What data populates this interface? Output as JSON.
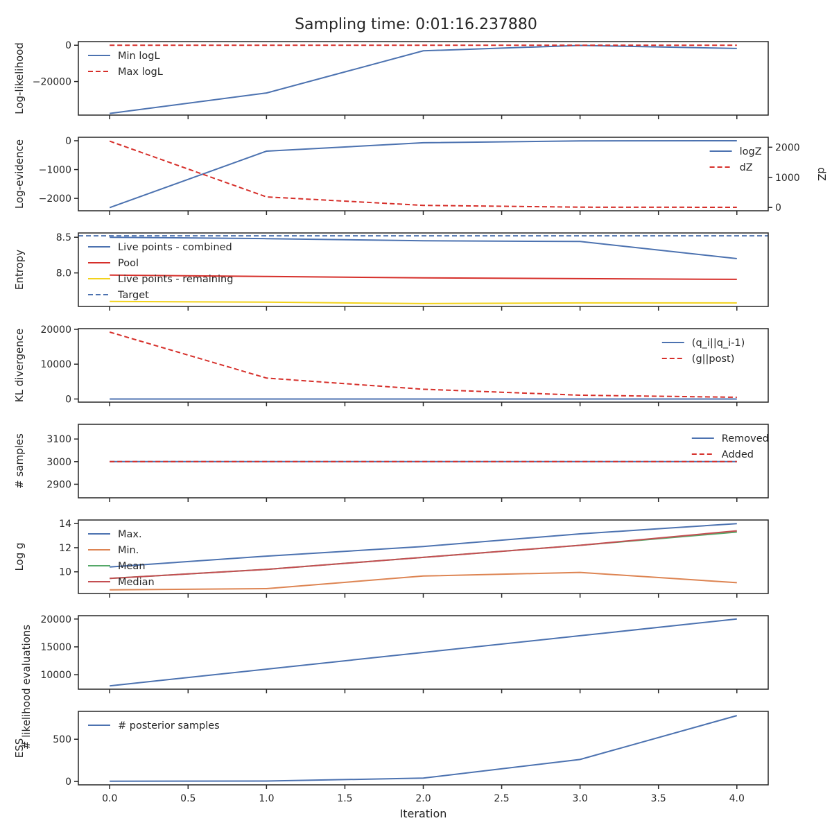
{
  "title": "Sampling time: 0:01:16.237880",
  "colors": {
    "blue": "#4c72b0",
    "red_dashed": "#d62f2a",
    "red": "#d62f2a",
    "orange": "#dd8452",
    "green": "#55a868",
    "median_red": "#c44e52",
    "yellow": "#f2d21b",
    "axis": "#262626"
  },
  "chart_data": [
    {
      "type": "line",
      "ylabel": "Log-likelihood",
      "ylim": [
        -38500,
        2000
      ],
      "yticks": [
        {
          "v": 0,
          "label": "0"
        },
        {
          "v": -20000,
          "label": "−20000"
        }
      ],
      "legend_position": "top-left",
      "series": [
        {
          "name": "Min logL",
          "x": [
            0,
            1,
            2,
            3,
            4
          ],
          "values": [
            -37600,
            -26300,
            -3100,
            -100,
            -1800
          ],
          "color": "#4c72b0",
          "style": "solid"
        },
        {
          "name": "Max logL",
          "x": [
            0,
            1,
            2,
            3,
            4
          ],
          "values": [
            0,
            0,
            0,
            0,
            0
          ],
          "color": "#d62f2a",
          "style": "dashed"
        }
      ]
    },
    {
      "type": "line",
      "ylabel": "Log-evidence",
      "ylabel_right": "dZ",
      "ylim": [
        -2430,
        120
      ],
      "yticks": [
        {
          "v": 0,
          "label": "0"
        },
        {
          "v": -1000,
          "label": "−1000"
        },
        {
          "v": -2000,
          "label": "−2000"
        }
      ],
      "ylim_right": [
        -110,
        2330
      ],
      "yticks_right": [
        {
          "v": 0,
          "label": "0"
        },
        {
          "v": 1000,
          "label": "1000"
        },
        {
          "v": 2000,
          "label": "2000"
        }
      ],
      "legend_position": "top-right",
      "series": [
        {
          "name": "logZ",
          "x": [
            0,
            1,
            2,
            3,
            4
          ],
          "values": [
            -2320,
            -360,
            -70,
            -5,
            0
          ],
          "color": "#4c72b0",
          "style": "solid",
          "axis": "left"
        },
        {
          "name": "dZ",
          "x": [
            0,
            1,
            2,
            3,
            4
          ],
          "values": [
            2200,
            350,
            70,
            10,
            5
          ],
          "color": "#d62f2a",
          "style": "dashed",
          "axis": "right"
        }
      ]
    },
    {
      "type": "line",
      "ylabel": "Entropy",
      "ylim": [
        7.53,
        8.56
      ],
      "yticks": [
        {
          "v": 8.5,
          "label": "8.5"
        },
        {
          "v": 8.0,
          "label": "8.0"
        }
      ],
      "legend_position": "top-left",
      "series": [
        {
          "name": "Live points - combined",
          "x": [
            0,
            1,
            2,
            3,
            4
          ],
          "values": [
            8.5,
            8.48,
            8.45,
            8.44,
            8.2
          ],
          "color": "#4c72b0",
          "style": "solid"
        },
        {
          "name": "Pool",
          "x": [
            0,
            1,
            2,
            3,
            4
          ],
          "values": [
            7.97,
            7.95,
            7.93,
            7.92,
            7.91
          ],
          "color": "#d62f2a",
          "style": "solid"
        },
        {
          "name": "Live points - remaining",
          "x": [
            0,
            1,
            2,
            3,
            4
          ],
          "values": [
            7.6,
            7.59,
            7.57,
            7.58,
            7.58
          ],
          "color": "#f2d21b",
          "style": "solid"
        },
        {
          "name": "Target",
          "x": [
            -0.2,
            4.2
          ],
          "values": [
            8.52,
            8.52
          ],
          "color": "#4c72b0",
          "style": "dashed"
        }
      ]
    },
    {
      "type": "line",
      "ylabel": "KL divergence",
      "ylim": [
        -900,
        20200
      ],
      "yticks": [
        {
          "v": 20000,
          "label": "20000"
        },
        {
          "v": 10000,
          "label": "10000"
        },
        {
          "v": 0,
          "label": "0"
        }
      ],
      "legend_position": "top-right",
      "series": [
        {
          "name": "(q_i||q_i-1)",
          "x": [
            0,
            1,
            2,
            3,
            4
          ],
          "values": [
            0,
            0,
            0,
            0,
            0
          ],
          "color": "#4c72b0",
          "style": "solid"
        },
        {
          "name": "(g||post)",
          "x": [
            0,
            1,
            2,
            3,
            4
          ],
          "values": [
            19200,
            6000,
            2800,
            1100,
            500
          ],
          "color": "#d62f2a",
          "style": "dashed"
        }
      ]
    },
    {
      "type": "line",
      "ylabel": "# samples",
      "ylim": [
        2840,
        3165
      ],
      "yticks": [
        {
          "v": 3100,
          "label": "3100"
        },
        {
          "v": 3000,
          "label": "3000"
        },
        {
          "v": 2900,
          "label": "2900"
        }
      ],
      "legend_position": "top-right",
      "series": [
        {
          "name": "Removed",
          "x": [
            0,
            1,
            2,
            3,
            4
          ],
          "values": [
            3000,
            3000,
            3000,
            3000,
            3000
          ],
          "color": "#4c72b0",
          "style": "solid"
        },
        {
          "name": "Added",
          "x": [
            0,
            1,
            2,
            3,
            4
          ],
          "values": [
            3000,
            3000,
            3000,
            3000,
            3000
          ],
          "color": "#d62f2a",
          "style": "dashed"
        }
      ]
    },
    {
      "type": "line",
      "ylabel": "Log g",
      "ylim": [
        8.2,
        14.3
      ],
      "yticks": [
        {
          "v": 14,
          "label": "14"
        },
        {
          "v": 12,
          "label": "12"
        },
        {
          "v": 10,
          "label": "10"
        }
      ],
      "legend_position": "top-left",
      "series": [
        {
          "name": "Max.",
          "x": [
            0,
            1,
            2,
            3,
            4
          ],
          "values": [
            10.4,
            11.3,
            12.1,
            13.15,
            14.0
          ],
          "color": "#4c72b0",
          "style": "solid"
        },
        {
          "name": "Min.",
          "x": [
            0,
            1,
            2,
            3,
            4
          ],
          "values": [
            8.5,
            8.6,
            9.65,
            9.95,
            9.1
          ],
          "color": "#dd8452",
          "style": "solid"
        },
        {
          "name": "Mean",
          "x": [
            0,
            1,
            2,
            3,
            4
          ],
          "values": [
            9.45,
            10.2,
            11.2,
            12.2,
            13.3
          ],
          "color": "#55a868",
          "style": "solid"
        },
        {
          "name": "Median",
          "x": [
            0,
            1,
            2,
            3,
            4
          ],
          "values": [
            9.45,
            10.2,
            11.2,
            12.2,
            13.4
          ],
          "color": "#c44e52",
          "style": "solid"
        }
      ]
    },
    {
      "type": "line",
      "ylabel": "# likelihood evaluations",
      "ylim": [
        7400,
        20600
      ],
      "yticks": [
        {
          "v": 20000,
          "label": "20000"
        },
        {
          "v": 15000,
          "label": "15000"
        },
        {
          "v": 10000,
          "label": "10000"
        }
      ],
      "legend_position": "none",
      "series": [
        {
          "name": "",
          "x": [
            0,
            1,
            2,
            3,
            4
          ],
          "values": [
            8000,
            11000,
            14000,
            17000,
            20000
          ],
          "color": "#4c72b0",
          "style": "solid"
        }
      ]
    },
    {
      "type": "line",
      "ylabel": "ESS",
      "xlabel": "Iteration",
      "ylim": [
        -40,
        830
      ],
      "yticks": [
        {
          "v": 500,
          "label": "500"
        },
        {
          "v": 0,
          "label": "0"
        }
      ],
      "legend_position": "top-left",
      "series": [
        {
          "name": "# posterior samples",
          "x": [
            0,
            1,
            2,
            3,
            4
          ],
          "values": [
            3,
            5,
            40,
            260,
            780
          ],
          "color": "#4c72b0",
          "style": "solid"
        }
      ]
    }
  ],
  "x_axis": {
    "xlim": [
      -0.2,
      4.2
    ],
    "ticks": [
      {
        "v": 0.0,
        "label": "0.0"
      },
      {
        "v": 0.5,
        "label": "0.5"
      },
      {
        "v": 1.0,
        "label": "1.0"
      },
      {
        "v": 1.5,
        "label": "1.5"
      },
      {
        "v": 2.0,
        "label": "2.0"
      },
      {
        "v": 2.5,
        "label": "2.5"
      },
      {
        "v": 3.0,
        "label": "3.0"
      },
      {
        "v": 3.5,
        "label": "3.5"
      },
      {
        "v": 4.0,
        "label": "4.0"
      }
    ]
  }
}
